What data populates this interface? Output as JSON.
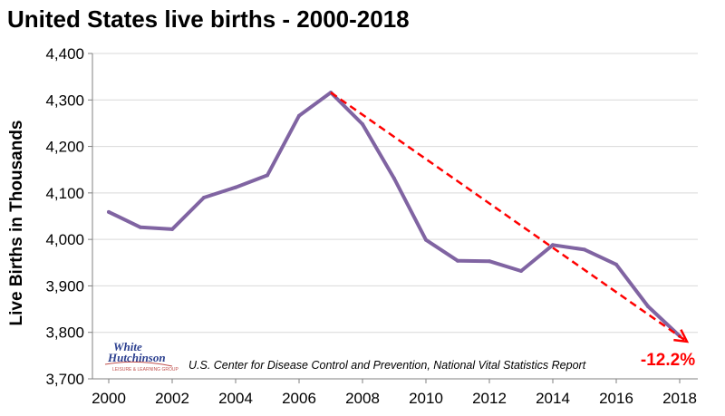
{
  "chart_data": {
    "type": "line",
    "title": "United States live births - 2000-2018",
    "ylabel": "Live Births in Thousands",
    "xlabel": "",
    "ylim": [
      3700,
      4400
    ],
    "xlim": [
      2000,
      2018
    ],
    "grid": true,
    "yticks": [
      "3,700",
      "3,800",
      "3,900",
      "4,000",
      "4,100",
      "4,200",
      "4,300",
      "4,400"
    ],
    "xticks": [
      "2000",
      "2002",
      "2004",
      "2006",
      "2008",
      "2010",
      "2012",
      "2014",
      "2016",
      "2018"
    ],
    "series": [
      {
        "x": [
          2000,
          2001,
          2002,
          2003,
          2004,
          2005,
          2006,
          2007,
          2008,
          2009,
          2010,
          2011,
          2012,
          2013,
          2014,
          2015,
          2016,
          2017,
          2018
        ],
        "values": [
          4059,
          4026,
          4022,
          4090,
          4112,
          4138,
          4266,
          4316,
          4248,
          4131,
          3999,
          3954,
          3953,
          3932,
          3988,
          3978,
          3946,
          3856,
          3792
        ],
        "color": "#8064a2"
      }
    ],
    "trend": {
      "from": {
        "x": 2007,
        "y": 4316
      },
      "to": {
        "x": 2018,
        "y": 3792
      },
      "label": "-12.2%",
      "color": "#ff0000"
    },
    "source": "U.S.  Center for Disease Control and Prevention, National Vital Statistics Report"
  },
  "logo": {
    "line1": "White",
    "line2": "Hutchinson",
    "tagline": "LEISURE & LEARNING GROUP"
  }
}
